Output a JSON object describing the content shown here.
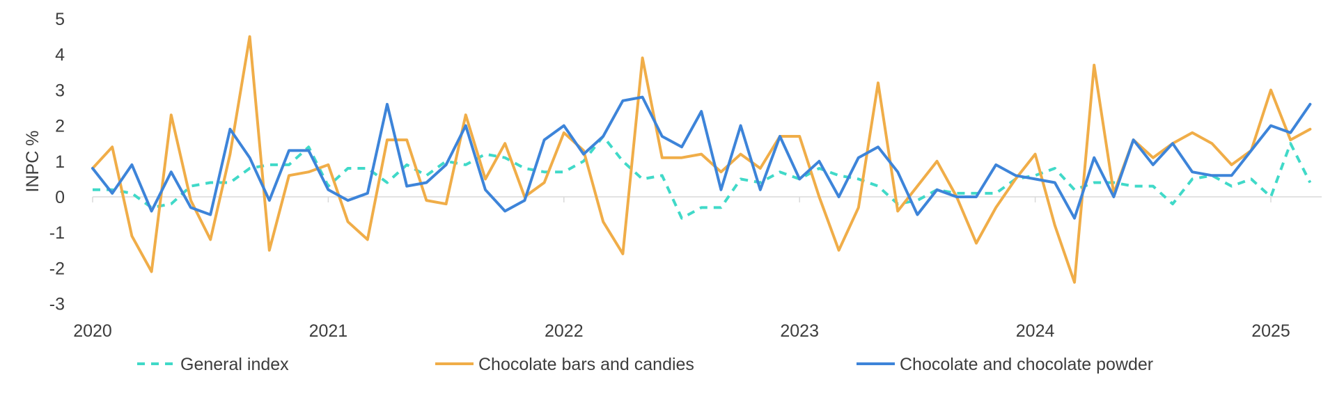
{
  "chart_data": {
    "type": "line",
    "ylabel": "INPC %",
    "xlabel": "",
    "ylim": [
      -3,
      5
    ],
    "yticks": [
      5,
      4,
      3,
      2,
      1,
      0,
      -1,
      -2,
      -3
    ],
    "ytick_labels": [
      "5",
      "4",
      "3",
      "2",
      "1",
      "0",
      "-1",
      "-2",
      "-3"
    ],
    "x_start": "2020-01",
    "x_end": "2025-03",
    "x_ticks": [
      {
        "label": "2020",
        "date": "2020-01"
      },
      {
        "label": "2021",
        "date": "2021-01"
      },
      {
        "label": "2022",
        "date": "2022-01"
      },
      {
        "label": "2023",
        "date": "2023-01"
      },
      {
        "label": "2024",
        "date": "2024-01"
      },
      {
        "label": "2025",
        "date": "2025-01"
      }
    ],
    "grid": false,
    "legend_position": "bottom",
    "series": [
      {
        "name": "General index",
        "color": "#40d9c8",
        "dash": "dashed",
        "values": [
          0.2,
          0.2,
          0.1,
          -0.3,
          -0.2,
          0.3,
          0.4,
          0.4,
          0.8,
          0.9,
          0.9,
          1.4,
          0.3,
          0.8,
          0.8,
          0.4,
          0.9,
          0.6,
          1.0,
          0.9,
          1.2,
          1.1,
          0.8,
          0.7,
          0.7,
          1.0,
          1.7,
          1.0,
          0.5,
          0.6,
          -0.6,
          -0.3,
          -0.3,
          0.5,
          0.4,
          0.7,
          0.5,
          0.8,
          0.6,
          0.5,
          0.3,
          -0.2,
          -0.1,
          0.2,
          0.1,
          0.1,
          0.1,
          0.5,
          0.6,
          0.8,
          0.2,
          0.4,
          0.4,
          0.3,
          0.3,
          -0.2,
          0.5,
          0.6,
          0.3,
          0.5,
          0.0,
          1.5,
          0.4
        ]
      },
      {
        "name": "Chocolate bars and candies",
        "color": "#f0ad48",
        "dash": "solid",
        "values": [
          0.8,
          1.4,
          -1.1,
          -2.1,
          2.3,
          -0.1,
          -1.2,
          1.2,
          4.5,
          -1.5,
          0.6,
          0.7,
          0.9,
          -0.7,
          -1.2,
          1.6,
          1.6,
          -0.1,
          -0.2,
          2.3,
          0.5,
          1.5,
          0.0,
          0.4,
          1.8,
          1.3,
          -0.7,
          -1.6,
          3.9,
          1.1,
          1.1,
          1.2,
          0.7,
          1.2,
          0.8,
          1.7,
          1.7,
          0.0,
          -1.5,
          -0.3,
          3.2,
          -0.4,
          0.3,
          1.0,
          0.0,
          -1.3,
          -0.3,
          0.5,
          1.2,
          -0.8,
          -2.4,
          3.7,
          0.1,
          1.6,
          1.1,
          1.5,
          1.8,
          1.5,
          0.9,
          1.3,
          3.0,
          1.6,
          1.9
        ]
      },
      {
        "name": "Chocolate and chocolate powder",
        "color": "#3d84d9",
        "dash": "solid",
        "values": [
          0.8,
          0.1,
          0.9,
          -0.4,
          0.7,
          -0.3,
          -0.5,
          1.9,
          1.1,
          -0.1,
          1.3,
          1.3,
          0.2,
          -0.1,
          0.1,
          2.6,
          0.3,
          0.4,
          0.9,
          2.0,
          0.2,
          -0.4,
          -0.1,
          1.6,
          2.0,
          1.2,
          1.7,
          2.7,
          2.8,
          1.7,
          1.4,
          2.4,
          0.2,
          2.0,
          0.2,
          1.7,
          0.5,
          1.0,
          0.0,
          1.1,
          1.4,
          0.7,
          -0.5,
          0.2,
          0.0,
          0.0,
          0.9,
          0.6,
          0.5,
          0.4,
          -0.6,
          1.1,
          0.0,
          1.6,
          0.9,
          1.5,
          0.7,
          0.6,
          0.6,
          1.3,
          2.0,
          1.8,
          2.6
        ]
      }
    ]
  }
}
